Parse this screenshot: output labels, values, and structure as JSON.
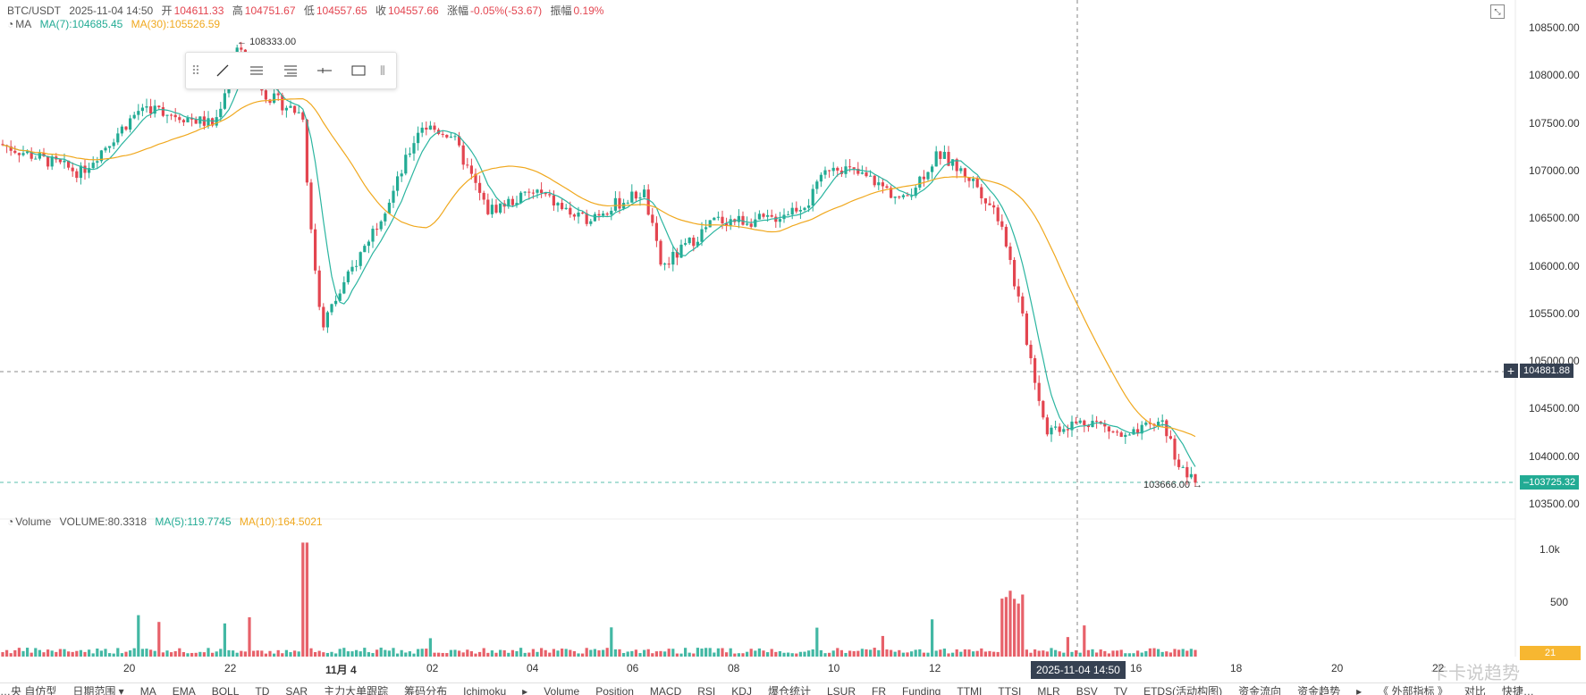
{
  "header": {
    "symbol": "BTC/USDT",
    "datetime": "2025-11-04 14:50",
    "open_label": "开",
    "open": "104611.33",
    "high_label": "高",
    "high": "104751.67",
    "low_label": "低",
    "low": "104557.65",
    "close_label": "收",
    "close": "104557.66",
    "change_label": "涨幅",
    "change": "-0.05%(-53.67)",
    "amp_label": "振幅",
    "amp": "0.19%"
  },
  "ma_legend": {
    "name": "MA",
    "ma7": "MA(7):104685.45",
    "ma30": "MA(30):105526.59"
  },
  "volume_legend": {
    "name": "Volume",
    "volume": "VOLUME:80.3318",
    "ma5": "MA(5):119.7745",
    "ma10": "MA(10):164.5021"
  },
  "price_axis": {
    "ticks": [
      "108500.00",
      "108000.00",
      "107500.00",
      "107000.00",
      "106500.00",
      "106000.00",
      "105500.00",
      "105000.00",
      "104500.00",
      "104000.00",
      "103500.00"
    ],
    "crosshair_price": "104881.88",
    "last_price": "103725.32"
  },
  "volume_axis": {
    "ticks": [
      "1.0k",
      "500"
    ],
    "last_volume": "21"
  },
  "time_axis": {
    "labels": [
      "20",
      "22",
      "11月 4",
      "02",
      "04",
      "06",
      "08",
      "10",
      "12",
      "14",
      "16",
      "18",
      "20",
      "22"
    ],
    "crosshair_time": "2025-11-04 14:50"
  },
  "annotations": {
    "high_mark": "108333.00",
    "low_mark": "103666.00"
  },
  "toolbar": {
    "grip": "⠿",
    "end_grip": "⦀"
  },
  "bottom_bar": [
    "…央 自仿型",
    "日期范围 ▾",
    "MA",
    "EMA",
    "BOLL",
    "TD",
    "SAR",
    "主力大单跟踪",
    "筹码分布",
    "Ichimoku",
    "▸",
    "Volume",
    "Position",
    "MACD",
    "RSI",
    "KDJ",
    "爆仓统计",
    "LSUR",
    "FR",
    "Funding",
    "TTMI",
    "TTSI",
    "MLR",
    "BSV",
    "TV",
    "ETDS(活动构图)",
    "资金流向",
    "资金趋势",
    "▸",
    "《 外部指标 》",
    "对比",
    "快捷…"
  ],
  "watermark": "卡卡说趋势",
  "colors": {
    "up": "#22ab94",
    "down": "#e34550",
    "ma7": "#2bb5a0",
    "ma30": "#f0a81e",
    "axis_text": "#333333"
  },
  "chart_data": [
    {
      "type": "candlestick",
      "title": "BTC/USDT",
      "ylim": [
        103400,
        108700
      ],
      "ylabel": "",
      "xlabel": "",
      "x_ticks": [
        "20",
        "22",
        "11月 4",
        "02",
        "04",
        "06",
        "08",
        "10",
        "12",
        "14",
        "16",
        "18",
        "20",
        "22"
      ],
      "key_points": [
        {
          "label": "start",
          "close": 107300
        },
        {
          "label": "peak",
          "high": 108333.0
        },
        {
          "label": "dip",
          "low": 105300
        },
        {
          "label": "recovery",
          "close": 107300
        },
        {
          "label": "plateau",
          "close": 106600
        },
        {
          "label": "second high",
          "close": 107200
        },
        {
          "label": "drop",
          "close": 104200
        },
        {
          "label": "lowest",
          "low": 103666.0
        },
        {
          "label": "last",
          "close": 103725.32
        }
      ],
      "series": [
        {
          "name": "MA(7)",
          "last": 104685.45
        },
        {
          "name": "MA(30)",
          "last": 105526.59
        }
      ]
    },
    {
      "type": "bar",
      "title": "Volume",
      "ylim": [
        0,
        1300
      ],
      "y_ticks": [
        "1.0k",
        "500"
      ],
      "series": [
        {
          "name": "VOLUME",
          "last": 80.3318
        },
        {
          "name": "MA(5)",
          "last": 119.7745
        },
        {
          "name": "MA(10)",
          "last": 164.5021
        }
      ]
    }
  ]
}
